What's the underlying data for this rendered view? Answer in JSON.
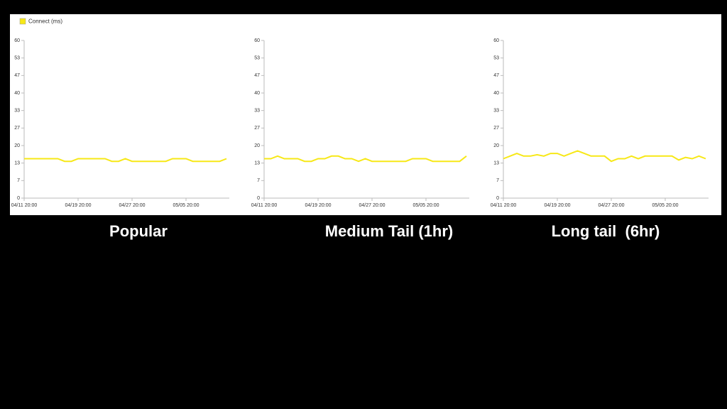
{
  "chart_data": [
    {
      "type": "line",
      "title": "Popular",
      "categories": [
        "04/11 20:00",
        null,
        null,
        null,
        null,
        null,
        null,
        null,
        "04/19 20:00",
        null,
        null,
        null,
        null,
        null,
        null,
        null,
        "04/27 20:00",
        null,
        null,
        null,
        null,
        null,
        null,
        null,
        "05/05 20:00",
        null,
        null,
        null,
        null,
        null,
        null
      ],
      "series": [
        {
          "name": "Connect (ms)",
          "color": "#f7e817",
          "values": [
            15,
            15,
            15,
            15,
            15,
            15,
            14,
            14,
            15,
            15,
            15,
            15,
            15,
            14,
            14,
            15,
            14,
            14,
            14,
            14,
            14,
            14,
            15,
            15,
            15,
            14,
            14,
            14,
            14,
            14,
            15
          ]
        }
      ],
      "ylim": [
        0,
        60
      ],
      "yticks": [
        0,
        {
          "value": 6.667,
          "label": "7"
        },
        {
          "value": 13.333,
          "label": "13"
        },
        20,
        {
          "value": 26.667,
          "label": "27"
        },
        {
          "value": 33.333,
          "label": "33"
        },
        40,
        {
          "value": 46.667,
          "label": "47"
        },
        {
          "value": 53.333,
          "label": "53"
        },
        60
      ],
      "grid": false
    },
    {
      "type": "line",
      "title": "Medium Tail (1hr)",
      "categories": [
        "04/11 20:00",
        null,
        null,
        null,
        null,
        null,
        null,
        null,
        "04/19 20:00",
        null,
        null,
        null,
        null,
        null,
        null,
        null,
        "04/27 20:00",
        null,
        null,
        null,
        null,
        null,
        null,
        null,
        "05/05 20:00",
        null,
        null,
        null,
        null,
        null,
        null
      ],
      "series": [
        {
          "color": "#f7e817",
          "values": [
            15,
            15,
            16,
            15,
            15,
            15,
            14,
            14,
            15,
            15,
            16,
            16,
            15,
            15,
            14,
            15,
            14,
            14,
            14,
            14,
            14,
            14,
            15,
            15,
            15,
            14,
            14,
            14,
            14,
            14,
            16
          ]
        }
      ],
      "ylim": [
        0,
        60
      ],
      "yticks": [
        0,
        {
          "value": 6.667,
          "label": "7"
        },
        {
          "value": 13.333,
          "label": "13"
        },
        20,
        {
          "value": 26.667,
          "label": "27"
        },
        {
          "value": 33.333,
          "label": "33"
        },
        40,
        {
          "value": 46.667,
          "label": "47"
        },
        {
          "value": 53.333,
          "label": "53"
        },
        60
      ],
      "grid": false
    },
    {
      "type": "line",
      "title": "Long tail  (6hr)",
      "categories": [
        "04/11 20:00",
        null,
        null,
        null,
        null,
        null,
        null,
        null,
        "04/19 20:00",
        null,
        null,
        null,
        null,
        null,
        null,
        null,
        "04/27 20:00",
        null,
        null,
        null,
        null,
        null,
        null,
        null,
        "05/05 20:00",
        null,
        null,
        null,
        null,
        null,
        null
      ],
      "series": [
        {
          "color": "#f7e817",
          "values": [
            15,
            16,
            17,
            16,
            16,
            16.5,
            16,
            17,
            17,
            16,
            17,
            18,
            17,
            16,
            16,
            16,
            14,
            15,
            15,
            16,
            15,
            16,
            16,
            16,
            16,
            16,
            14.5,
            15.5,
            15,
            16,
            15
          ]
        }
      ],
      "ylim": [
        0,
        60
      ],
      "yticks": [
        0,
        {
          "value": 6.667,
          "label": "7"
        },
        {
          "value": 13.333,
          "label": "13"
        },
        20,
        {
          "value": 26.667,
          "label": "27"
        },
        {
          "value": 33.333,
          "label": "33"
        },
        40,
        {
          "value": 46.667,
          "label": "47"
        },
        {
          "value": 53.333,
          "label": "53"
        },
        60
      ],
      "grid": false
    }
  ]
}
